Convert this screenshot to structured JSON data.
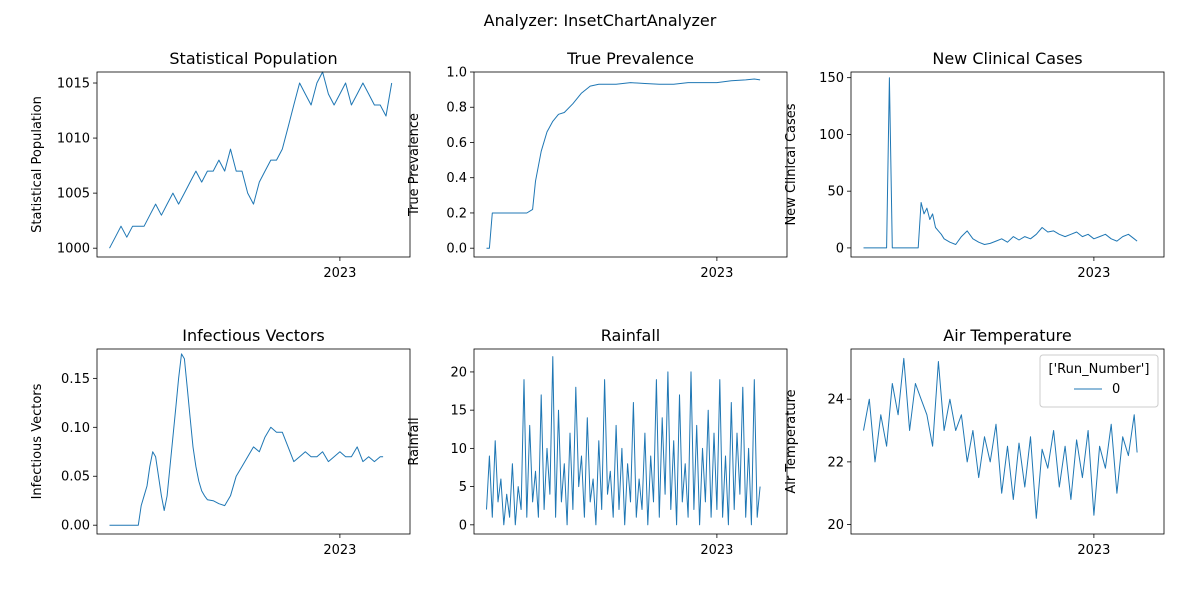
{
  "figure": {
    "suptitle": "Analyzer: InsetChartAnalyzer",
    "line_color": "#1f77b4"
  },
  "legend": {
    "title": "['Run_Number']",
    "entries": [
      "0"
    ]
  },
  "chart_data": [
    {
      "type": "line",
      "title": "Statistical Population",
      "ylabel": "Statistical Population",
      "xtick": "2023",
      "ylim": [
        999.2,
        1016.0
      ],
      "yticks": [
        1000,
        1005,
        1010,
        1015
      ],
      "ytick_labels": [
        "1000",
        "1005",
        "1010",
        "1015"
      ],
      "xlim": [
        0,
        100
      ],
      "xtick_pos": 80,
      "series": [
        {
          "name": "0",
          "x": [
            0,
            2,
            4,
            6,
            8,
            10,
            12,
            14,
            16,
            18,
            20,
            22,
            24,
            26,
            28,
            30,
            32,
            34,
            36,
            38,
            40,
            42,
            44,
            46,
            48,
            50,
            52,
            54,
            56,
            58,
            60,
            62,
            64,
            66,
            68,
            70,
            72,
            74,
            76,
            78,
            80,
            82,
            84,
            86,
            88,
            90,
            92,
            94,
            96,
            98
          ],
          "y": [
            1000,
            1001,
            1002,
            1001,
            1002,
            1002,
            1002,
            1003,
            1004,
            1003,
            1004,
            1005,
            1004,
            1005,
            1006,
            1007,
            1006,
            1007,
            1007,
            1008,
            1007,
            1009,
            1007,
            1007,
            1005,
            1004,
            1006,
            1007,
            1008,
            1008,
            1009,
            1011,
            1013,
            1015,
            1014,
            1013,
            1015,
            1016,
            1014,
            1013,
            1014,
            1015,
            1013,
            1014,
            1015,
            1014,
            1013,
            1013,
            1012,
            1015
          ]
        }
      ]
    },
    {
      "type": "line",
      "title": "True Prevalence",
      "ylabel": "True Prevalence",
      "xtick": "2023",
      "ylim": [
        -0.05,
        1.0
      ],
      "yticks": [
        0.0,
        0.2,
        0.4,
        0.6,
        0.8,
        1.0
      ],
      "ytick_labels": [
        "0.0",
        "0.2",
        "0.4",
        "0.6",
        "0.8",
        "1.0"
      ],
      "xlim": [
        0,
        100
      ],
      "xtick_pos": 80,
      "series": [
        {
          "name": "0",
          "x": [
            0,
            1,
            2,
            4,
            6,
            8,
            10,
            12,
            14,
            16,
            17,
            19,
            21,
            23,
            25,
            27,
            30,
            33,
            36,
            39,
            42,
            45,
            50,
            55,
            60,
            65,
            70,
            75,
            80,
            85,
            90,
            93,
            95
          ],
          "y": [
            0,
            0,
            0.2,
            0.2,
            0.2,
            0.2,
            0.2,
            0.2,
            0.2,
            0.22,
            0.38,
            0.55,
            0.66,
            0.72,
            0.76,
            0.77,
            0.82,
            0.88,
            0.92,
            0.93,
            0.93,
            0.93,
            0.94,
            0.935,
            0.93,
            0.93,
            0.94,
            0.94,
            0.94,
            0.95,
            0.955,
            0.96,
            0.955
          ]
        }
      ]
    },
    {
      "type": "line",
      "title": "New Clinical Cases",
      "ylabel": "New Clinical Cases",
      "xtick": "2023",
      "ylim": [
        -8,
        155
      ],
      "yticks": [
        0,
        50,
        100,
        150
      ],
      "ytick_labels": [
        "0",
        "50",
        "100",
        "150"
      ],
      "xlim": [
        0,
        100
      ],
      "xtick_pos": 80,
      "series": [
        {
          "name": "0",
          "x": [
            0,
            3,
            6,
            8,
            9,
            10,
            11,
            12,
            14,
            16,
            18,
            19,
            20,
            21,
            22,
            23,
            24,
            25,
            26,
            27,
            28,
            30,
            32,
            34,
            36,
            38,
            40,
            42,
            44,
            46,
            48,
            50,
            52,
            54,
            56,
            58,
            60,
            62,
            64,
            66,
            68,
            70,
            72,
            74,
            76,
            78,
            80,
            82,
            84,
            86,
            88,
            90,
            92,
            94,
            95
          ],
          "y": [
            0,
            0,
            0,
            0,
            150,
            0,
            0,
            0,
            0,
            0,
            0,
            0,
            40,
            30,
            35,
            25,
            30,
            18,
            15,
            12,
            8,
            5,
            3,
            10,
            15,
            8,
            5,
            3,
            4,
            6,
            8,
            5,
            10,
            7,
            10,
            8,
            12,
            18,
            14,
            15,
            12,
            10,
            12,
            14,
            10,
            12,
            8,
            10,
            12,
            8,
            6,
            10,
            12,
            8,
            6
          ]
        }
      ]
    },
    {
      "type": "line",
      "title": "Infectious Vectors",
      "ylabel": "Infectious Vectors",
      "xtick": "2023",
      "ylim": [
        -0.009,
        0.18
      ],
      "yticks": [
        0.0,
        0.05,
        0.1,
        0.15
      ],
      "ytick_labels": [
        "0.00",
        "0.05",
        "0.10",
        "0.15"
      ],
      "xlim": [
        0,
        100
      ],
      "xtick_pos": 80,
      "series": [
        {
          "name": "0",
          "x": [
            0,
            4,
            8,
            10,
            11,
            12,
            13,
            14,
            15,
            16,
            17,
            18,
            19,
            20,
            21,
            22,
            23,
            24,
            25,
            26,
            27,
            28,
            29,
            30,
            31,
            32,
            33,
            34,
            36,
            38,
            40,
            42,
            44,
            46,
            48,
            50,
            52,
            54,
            56,
            58,
            60,
            62,
            64,
            66,
            68,
            70,
            72,
            74,
            76,
            78,
            80,
            82,
            84,
            86,
            88,
            90,
            92,
            94,
            95
          ],
          "y": [
            0,
            0,
            0,
            0,
            0.02,
            0.03,
            0.04,
            0.06,
            0.075,
            0.07,
            0.05,
            0.03,
            0.015,
            0.03,
            0.06,
            0.09,
            0.12,
            0.15,
            0.175,
            0.17,
            0.14,
            0.11,
            0.08,
            0.06,
            0.045,
            0.035,
            0.03,
            0.026,
            0.025,
            0.022,
            0.02,
            0.03,
            0.05,
            0.06,
            0.07,
            0.08,
            0.075,
            0.09,
            0.1,
            0.095,
            0.095,
            0.08,
            0.065,
            0.07,
            0.075,
            0.07,
            0.07,
            0.075,
            0.065,
            0.07,
            0.075,
            0.07,
            0.07,
            0.08,
            0.065,
            0.07,
            0.065,
            0.07,
            0.07
          ]
        }
      ]
    },
    {
      "type": "line",
      "title": "Rainfall",
      "ylabel": "Rainfall",
      "xtick": "2023",
      "ylim": [
        -1.2,
        23
      ],
      "yticks": [
        0,
        5,
        10,
        15,
        20
      ],
      "ytick_labels": [
        "0",
        "5",
        "10",
        "15",
        "20"
      ],
      "xlim": [
        0,
        100
      ],
      "xtick_pos": 80,
      "series": [
        {
          "name": "0",
          "x": [
            0,
            1,
            2,
            3,
            4,
            5,
            6,
            7,
            8,
            9,
            10,
            11,
            12,
            13,
            14,
            15,
            16,
            17,
            18,
            19,
            20,
            21,
            22,
            23,
            24,
            25,
            26,
            27,
            28,
            29,
            30,
            31,
            32,
            33,
            34,
            35,
            36,
            37,
            38,
            39,
            40,
            41,
            42,
            43,
            44,
            45,
            46,
            47,
            48,
            49,
            50,
            51,
            52,
            53,
            54,
            55,
            56,
            57,
            58,
            59,
            60,
            61,
            62,
            63,
            64,
            65,
            66,
            67,
            68,
            69,
            70,
            71,
            72,
            73,
            74,
            75,
            76,
            77,
            78,
            79,
            80,
            81,
            82,
            83,
            84,
            85,
            86,
            87,
            88,
            89,
            90,
            91,
            92,
            93,
            94,
            95
          ],
          "y": [
            2,
            9,
            1,
            11,
            3,
            6,
            0,
            4,
            1,
            8,
            0,
            5,
            2,
            19,
            1,
            13,
            3,
            7,
            1,
            17,
            2,
            10,
            4,
            22,
            1,
            15,
            3,
            8,
            0,
            12,
            2,
            18,
            5,
            9,
            1,
            14,
            3,
            6,
            0,
            11,
            2,
            19,
            4,
            7,
            1,
            13,
            2,
            10,
            0,
            8,
            3,
            16,
            1,
            6,
            2,
            12,
            0,
            9,
            3,
            19,
            1,
            14,
            4,
            20,
            2,
            11,
            0,
            17,
            3,
            8,
            1,
            20,
            2,
            13,
            0,
            10,
            3,
            15,
            1,
            12,
            2,
            19,
            1,
            9,
            0,
            16,
            2,
            12,
            4,
            18,
            1,
            10,
            0,
            19,
            1,
            5
          ]
        }
      ]
    },
    {
      "type": "line",
      "title": "Air Temperature",
      "ylabel": "Air Temperature",
      "xtick": "2023",
      "ylim": [
        19.7,
        25.6
      ],
      "yticks": [
        20,
        22,
        24
      ],
      "ytick_labels": [
        "20",
        "22",
        "24"
      ],
      "xlim": [
        0,
        100
      ],
      "xtick_pos": 80,
      "legend_loc": "upper right",
      "series": [
        {
          "name": "0",
          "x": [
            0,
            2,
            4,
            6,
            8,
            10,
            12,
            14,
            16,
            18,
            20,
            22,
            24,
            26,
            28,
            30,
            32,
            34,
            36,
            38,
            40,
            42,
            44,
            46,
            48,
            50,
            52,
            54,
            56,
            58,
            60,
            62,
            64,
            66,
            68,
            70,
            72,
            74,
            76,
            78,
            80,
            82,
            84,
            86,
            88,
            90,
            92,
            94,
            95
          ],
          "y": [
            23,
            24,
            22,
            23.5,
            22.5,
            24.5,
            23.5,
            25.3,
            23,
            24.5,
            24,
            23.5,
            22.5,
            25.2,
            23,
            24,
            23,
            23.5,
            22,
            23,
            21.5,
            22.8,
            22,
            23.2,
            21,
            22.5,
            20.8,
            22.6,
            21.2,
            22.8,
            20.2,
            22.4,
            21.8,
            23,
            21.2,
            22.5,
            20.8,
            22.7,
            21.5,
            23,
            20.3,
            22.5,
            21.8,
            23.2,
            21,
            22.8,
            22.2,
            23.5,
            22.3
          ]
        }
      ]
    }
  ]
}
